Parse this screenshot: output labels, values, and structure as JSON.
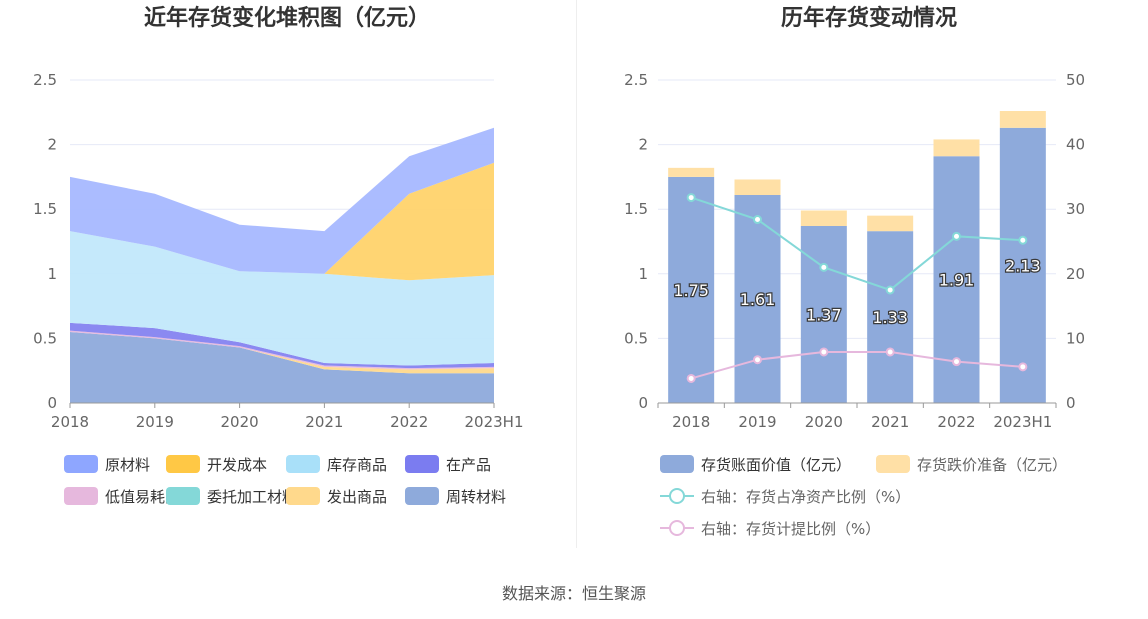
{
  "source": "数据来源：恒生聚源",
  "chart_data": [
    {
      "type": "area",
      "stacked": true,
      "title": "近年存货变化堆积图（亿元）",
      "categories": [
        "2018",
        "2019",
        "2020",
        "2021",
        "2022",
        "2023H1"
      ],
      "ylim": [
        0,
        2.5
      ],
      "yticks": [
        "0",
        "0.5",
        "1",
        "1.5",
        "2",
        "2.5"
      ],
      "series": [
        {
          "name": "周转材料",
          "color": "#8eaadb",
          "values": [
            0.55,
            0.5,
            0.43,
            0.26,
            0.23,
            0.23
          ]
        },
        {
          "name": "发出商品",
          "color": "#ffd98c",
          "values": [
            0.0,
            0.0,
            0.0,
            0.02,
            0.03,
            0.04
          ]
        },
        {
          "name": "委托加工材料",
          "color": "#84d8d8",
          "values": [
            0.0,
            0.0,
            0.0,
            0.0,
            0.0,
            0.0
          ]
        },
        {
          "name": "低值易耗品",
          "color": "#e6b8dd",
          "values": [
            0.01,
            0.01,
            0.01,
            0.01,
            0.01,
            0.01
          ]
        },
        {
          "name": "在产品",
          "color": "#8583f0",
          "values": [
            0.06,
            0.07,
            0.03,
            0.02,
            0.02,
            0.03
          ]
        },
        {
          "name": "库存商品",
          "color": "#c2e8fb",
          "values": [
            0.71,
            0.63,
            0.55,
            0.69,
            0.66,
            0.68
          ]
        },
        {
          "name": "开发成本",
          "color": "#ffd36b",
          "values": [
            0.0,
            0.0,
            0.0,
            0.0,
            0.67,
            0.87
          ]
        },
        {
          "name": "原材料",
          "color": "#a6b8ff",
          "values": [
            0.42,
            0.41,
            0.36,
            0.33,
            0.29,
            0.27
          ]
        }
      ],
      "legend": [
        {
          "name": "原材料",
          "color": "#8ea6ff"
        },
        {
          "name": "开发成本",
          "color": "#ffc845"
        },
        {
          "name": "库存商品",
          "color": "#a9e0f9"
        },
        {
          "name": "在产品",
          "color": "#7b7cf0"
        },
        {
          "name": "低值易耗品",
          "color": "#e6b8dd"
        },
        {
          "name": "委托加工材料",
          "color": "#84d8d8"
        },
        {
          "name": "发出商品",
          "color": "#ffd98c"
        },
        {
          "name": "周转材料",
          "color": "#8eaadb"
        }
      ]
    },
    {
      "type": "bar",
      "stacked": true,
      "title": "历年存货变动情况",
      "categories": [
        "2018",
        "2019",
        "2020",
        "2021",
        "2022",
        "2023H1"
      ],
      "ylim": [
        0,
        2.5
      ],
      "yticks": [
        "0",
        "0.5",
        "1",
        "1.5",
        "2",
        "2.5"
      ],
      "y2lim": [
        0,
        50
      ],
      "y2ticks": [
        "0",
        "10",
        "20",
        "30",
        "40",
        "50"
      ],
      "series": [
        {
          "name": "存货账面价值（亿元）",
          "color": "#8eaadb",
          "values": [
            1.75,
            1.61,
            1.37,
            1.33,
            1.91,
            2.13
          ],
          "labels": [
            "1.75",
            "1.61",
            "1.37",
            "1.33",
            "1.91",
            "2.13"
          ]
        },
        {
          "name": "存货跌价准备（亿元）",
          "color": "#ffe0a6",
          "values": [
            0.07,
            0.12,
            0.12,
            0.12,
            0.13,
            0.13
          ]
        }
      ],
      "lines": [
        {
          "name": "右轴：存货占净资产比例（%）",
          "color": "#84d8d8",
          "values": [
            31.8,
            28.4,
            21.0,
            17.5,
            25.8,
            25.2
          ]
        },
        {
          "name": "右轴：存货计提比例（%）",
          "color": "#e6b8dd",
          "values": [
            3.8,
            6.7,
            7.9,
            7.9,
            6.4,
            5.6
          ]
        }
      ]
    }
  ]
}
